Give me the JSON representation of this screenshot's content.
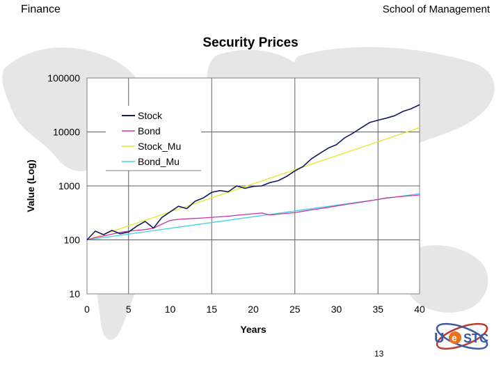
{
  "header": {
    "left": "Finance",
    "right": "School of Management"
  },
  "page_number": "13",
  "logo": {
    "text_u": "U",
    "text_e": "e",
    "text_stc": "STC",
    "colors": [
      "#3b5aa3",
      "#e8731a",
      "#c0392b"
    ]
  },
  "chart_data": {
    "type": "line",
    "title": "Security Prices",
    "xlabel": "Years",
    "ylabel": "Value (Log)",
    "xlim": [
      0,
      40
    ],
    "ylim": [
      10,
      100000
    ],
    "yscale": "log",
    "xticks": [
      0,
      5,
      10,
      15,
      20,
      25,
      30,
      35,
      40
    ],
    "yticks": [
      10,
      100,
      1000,
      10000,
      100000
    ],
    "ytick_labels": [
      "10",
      "100",
      "1000",
      "10000",
      "100000"
    ],
    "grid": true,
    "legend_position": "top-left",
    "series": [
      {
        "name": "Stock",
        "color": "#101a5c",
        "x": [
          0,
          1,
          2,
          3,
          4,
          5,
          6,
          7,
          8,
          9,
          10,
          11,
          12,
          13,
          14,
          15,
          16,
          17,
          18,
          19,
          20,
          21,
          22,
          23,
          24,
          25,
          26,
          27,
          28,
          29,
          30,
          31,
          32,
          33,
          34,
          35,
          36,
          37,
          38,
          39,
          40
        ],
        "y": [
          100,
          145,
          125,
          150,
          130,
          140,
          180,
          220,
          165,
          260,
          330,
          420,
          380,
          520,
          600,
          760,
          820,
          780,
          1000,
          900,
          980,
          1000,
          1150,
          1250,
          1500,
          1900,
          2300,
          3200,
          4000,
          5000,
          5800,
          7800,
          9500,
          12000,
          15000,
          16500,
          18000,
          20000,
          24000,
          27000,
          32000
        ]
      },
      {
        "name": "Bond",
        "color": "#cc33aa",
        "x": [
          0,
          1,
          2,
          3,
          4,
          5,
          6,
          7,
          8,
          9,
          10,
          11,
          12,
          13,
          14,
          15,
          16,
          17,
          18,
          19,
          20,
          21,
          22,
          23,
          24,
          25,
          26,
          27,
          28,
          29,
          30,
          31,
          32,
          33,
          34,
          35,
          36,
          37,
          38,
          39,
          40
        ],
        "y": [
          100,
          110,
          118,
          128,
          138,
          145,
          150,
          155,
          165,
          195,
          230,
          240,
          245,
          250,
          255,
          262,
          268,
          275,
          285,
          295,
          305,
          315,
          290,
          300,
          310,
          320,
          340,
          360,
          380,
          400,
          425,
          450,
          475,
          500,
          530,
          560,
          600,
          620,
          640,
          660,
          680
        ]
      },
      {
        "name": "Stock_Mu",
        "color": "#e6e62a",
        "x": [
          0,
          40
        ],
        "y": [
          100,
          12000
        ]
      },
      {
        "name": "Bond_Mu",
        "color": "#44d2e6",
        "x": [
          0,
          40
        ],
        "y": [
          100,
          720
        ]
      }
    ]
  }
}
